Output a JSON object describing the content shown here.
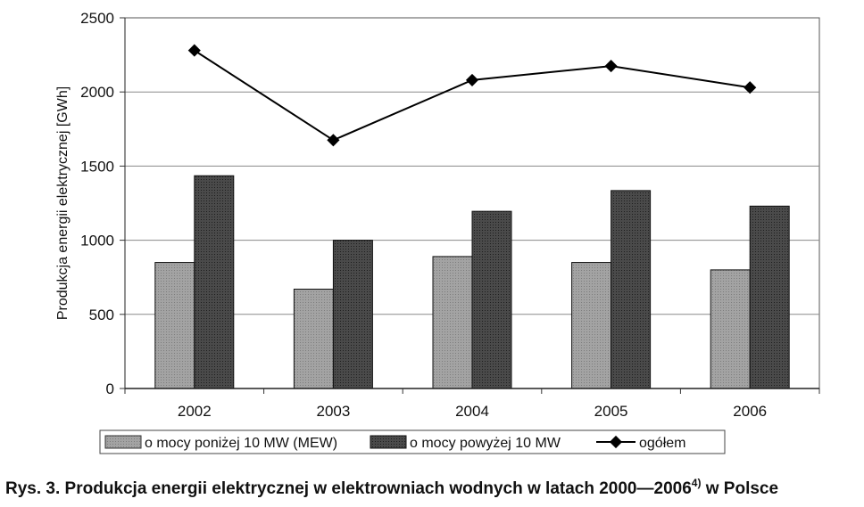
{
  "chart_data": {
    "type": "bar",
    "categories": [
      "2002",
      "2003",
      "2004",
      "2005",
      "2006"
    ],
    "series": [
      {
        "name": "o mocy poniżej 10 MW (MEW)",
        "type": "bar",
        "values": [
          850,
          670,
          890,
          850,
          800
        ],
        "color": "#9a9a9a"
      },
      {
        "name": "o mocy powyżej 10 MW",
        "type": "bar",
        "values": [
          1435,
          1000,
          1195,
          1335,
          1230
        ],
        "color": "#3a3a3a"
      },
      {
        "name": "ogółem",
        "type": "line",
        "values": [
          2280,
          1675,
          2080,
          2175,
          2030
        ],
        "color": "#000000"
      }
    ],
    "ylabel": "Produkcja energii elektrycznej [GWh]",
    "xlabel": "",
    "ylim": [
      0,
      2500
    ],
    "yticks": [
      "0",
      "500",
      "1000",
      "1500",
      "2000",
      "2500"
    ],
    "grid": true,
    "legend": "bottom"
  },
  "caption": {
    "text": "Rys. 3. Produkcja energii elektrycznej w elektrowniach wodnych w latach 2000—2006",
    "superscript": "4)",
    "suffix": " w Polsce"
  }
}
